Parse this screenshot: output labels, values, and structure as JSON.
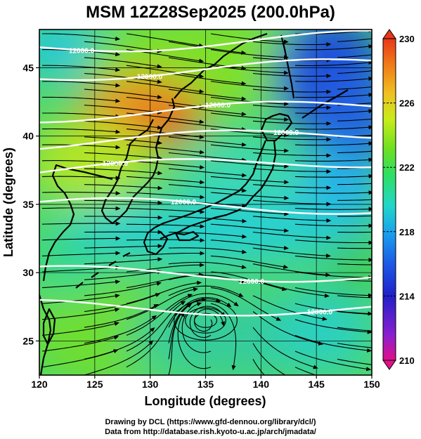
{
  "title": "MSM 12Z28Sep2025 (200.0hPa)",
  "x_axis": {
    "label": "Longitude (degrees)",
    "ticks": [
      120,
      125,
      130,
      135,
      140,
      145,
      150
    ],
    "range": [
      120,
      150
    ]
  },
  "y_axis": {
    "label": "Latitude  (degrees)",
    "ticks": [
      25,
      30,
      35,
      40,
      45
    ],
    "range": [
      22.5,
      47.8
    ]
  },
  "colorbar": {
    "min": 210,
    "max": 230,
    "labels": [
      230,
      226,
      222,
      218,
      214,
      210
    ],
    "colors": [
      "#e0108a",
      "#8a1fd0",
      "#2020c8",
      "#1c5ae6",
      "#18a4ec",
      "#22d6c8",
      "#2ee060",
      "#70e020",
      "#c8ec1a",
      "#f0c020",
      "#f07a18",
      "#e83818"
    ]
  },
  "contours": [
    {
      "label": "12000.0",
      "lat": 46.5
    },
    {
      "label": "12000.0",
      "lat": 44.5
    },
    {
      "label": "12000.0",
      "lat": 41.5
    },
    {
      "label": "12000.0",
      "lat": 39.5
    },
    {
      "label": "12000.0",
      "lat": 37.5
    },
    {
      "label": "12000.0",
      "lat": 35.0
    },
    {
      "label": "12000.0",
      "lat": 30.0
    },
    {
      "label": "12000.0",
      "lat": 27.5
    }
  ],
  "footer": {
    "line1": "Drawing by DCL (https://www.gfd-dennou.org/library/dcl/)",
    "line2": "Data from http://database.rish.kyoto-u.ac.jp/arch/jmadata/"
  }
}
